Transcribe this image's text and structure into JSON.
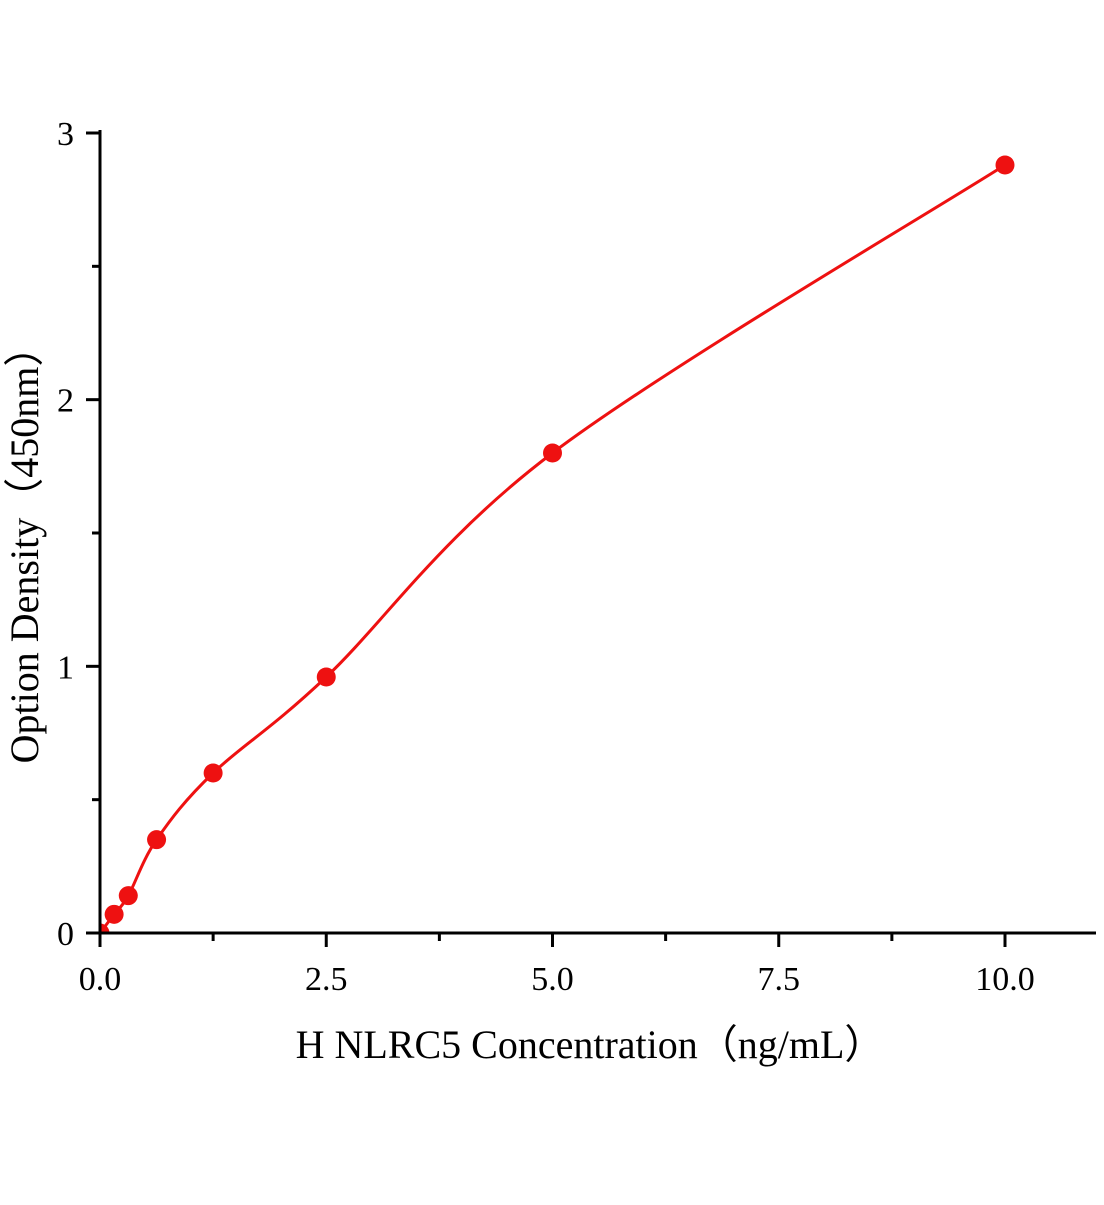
{
  "chart_data": {
    "type": "scatter",
    "title": "",
    "xlabel": "H NLRC5 Concentration（ng/mL）",
    "ylabel": "Option Density（450nm）",
    "xlim": [
      0,
      11
    ],
    "ylim": [
      0,
      3
    ],
    "x_ticks": [
      0,
      2.5,
      5,
      7.5,
      10
    ],
    "x_tick_labels": [
      "0.0",
      "2.5",
      "5.0",
      "7.5",
      "10.0"
    ],
    "x_minor_ticks": [
      1.25,
      3.75,
      6.25,
      8.75
    ],
    "y_ticks": [
      0,
      1,
      2,
      3
    ],
    "y_tick_labels": [
      "0",
      "1",
      "2",
      "3"
    ],
    "y_minor_ticks": [
      0.5,
      1.5,
      2.5
    ],
    "grid": false,
    "color": "#ee1111",
    "series": [
      {
        "x": [
          0,
          0.156,
          0.3125,
          0.625,
          1.25,
          2.5,
          5,
          10
        ],
        "y": [
          0,
          0.07,
          0.14,
          0.35,
          0.6,
          0.96,
          1.8,
          2.88
        ],
        "fit_line": true
      }
    ]
  }
}
